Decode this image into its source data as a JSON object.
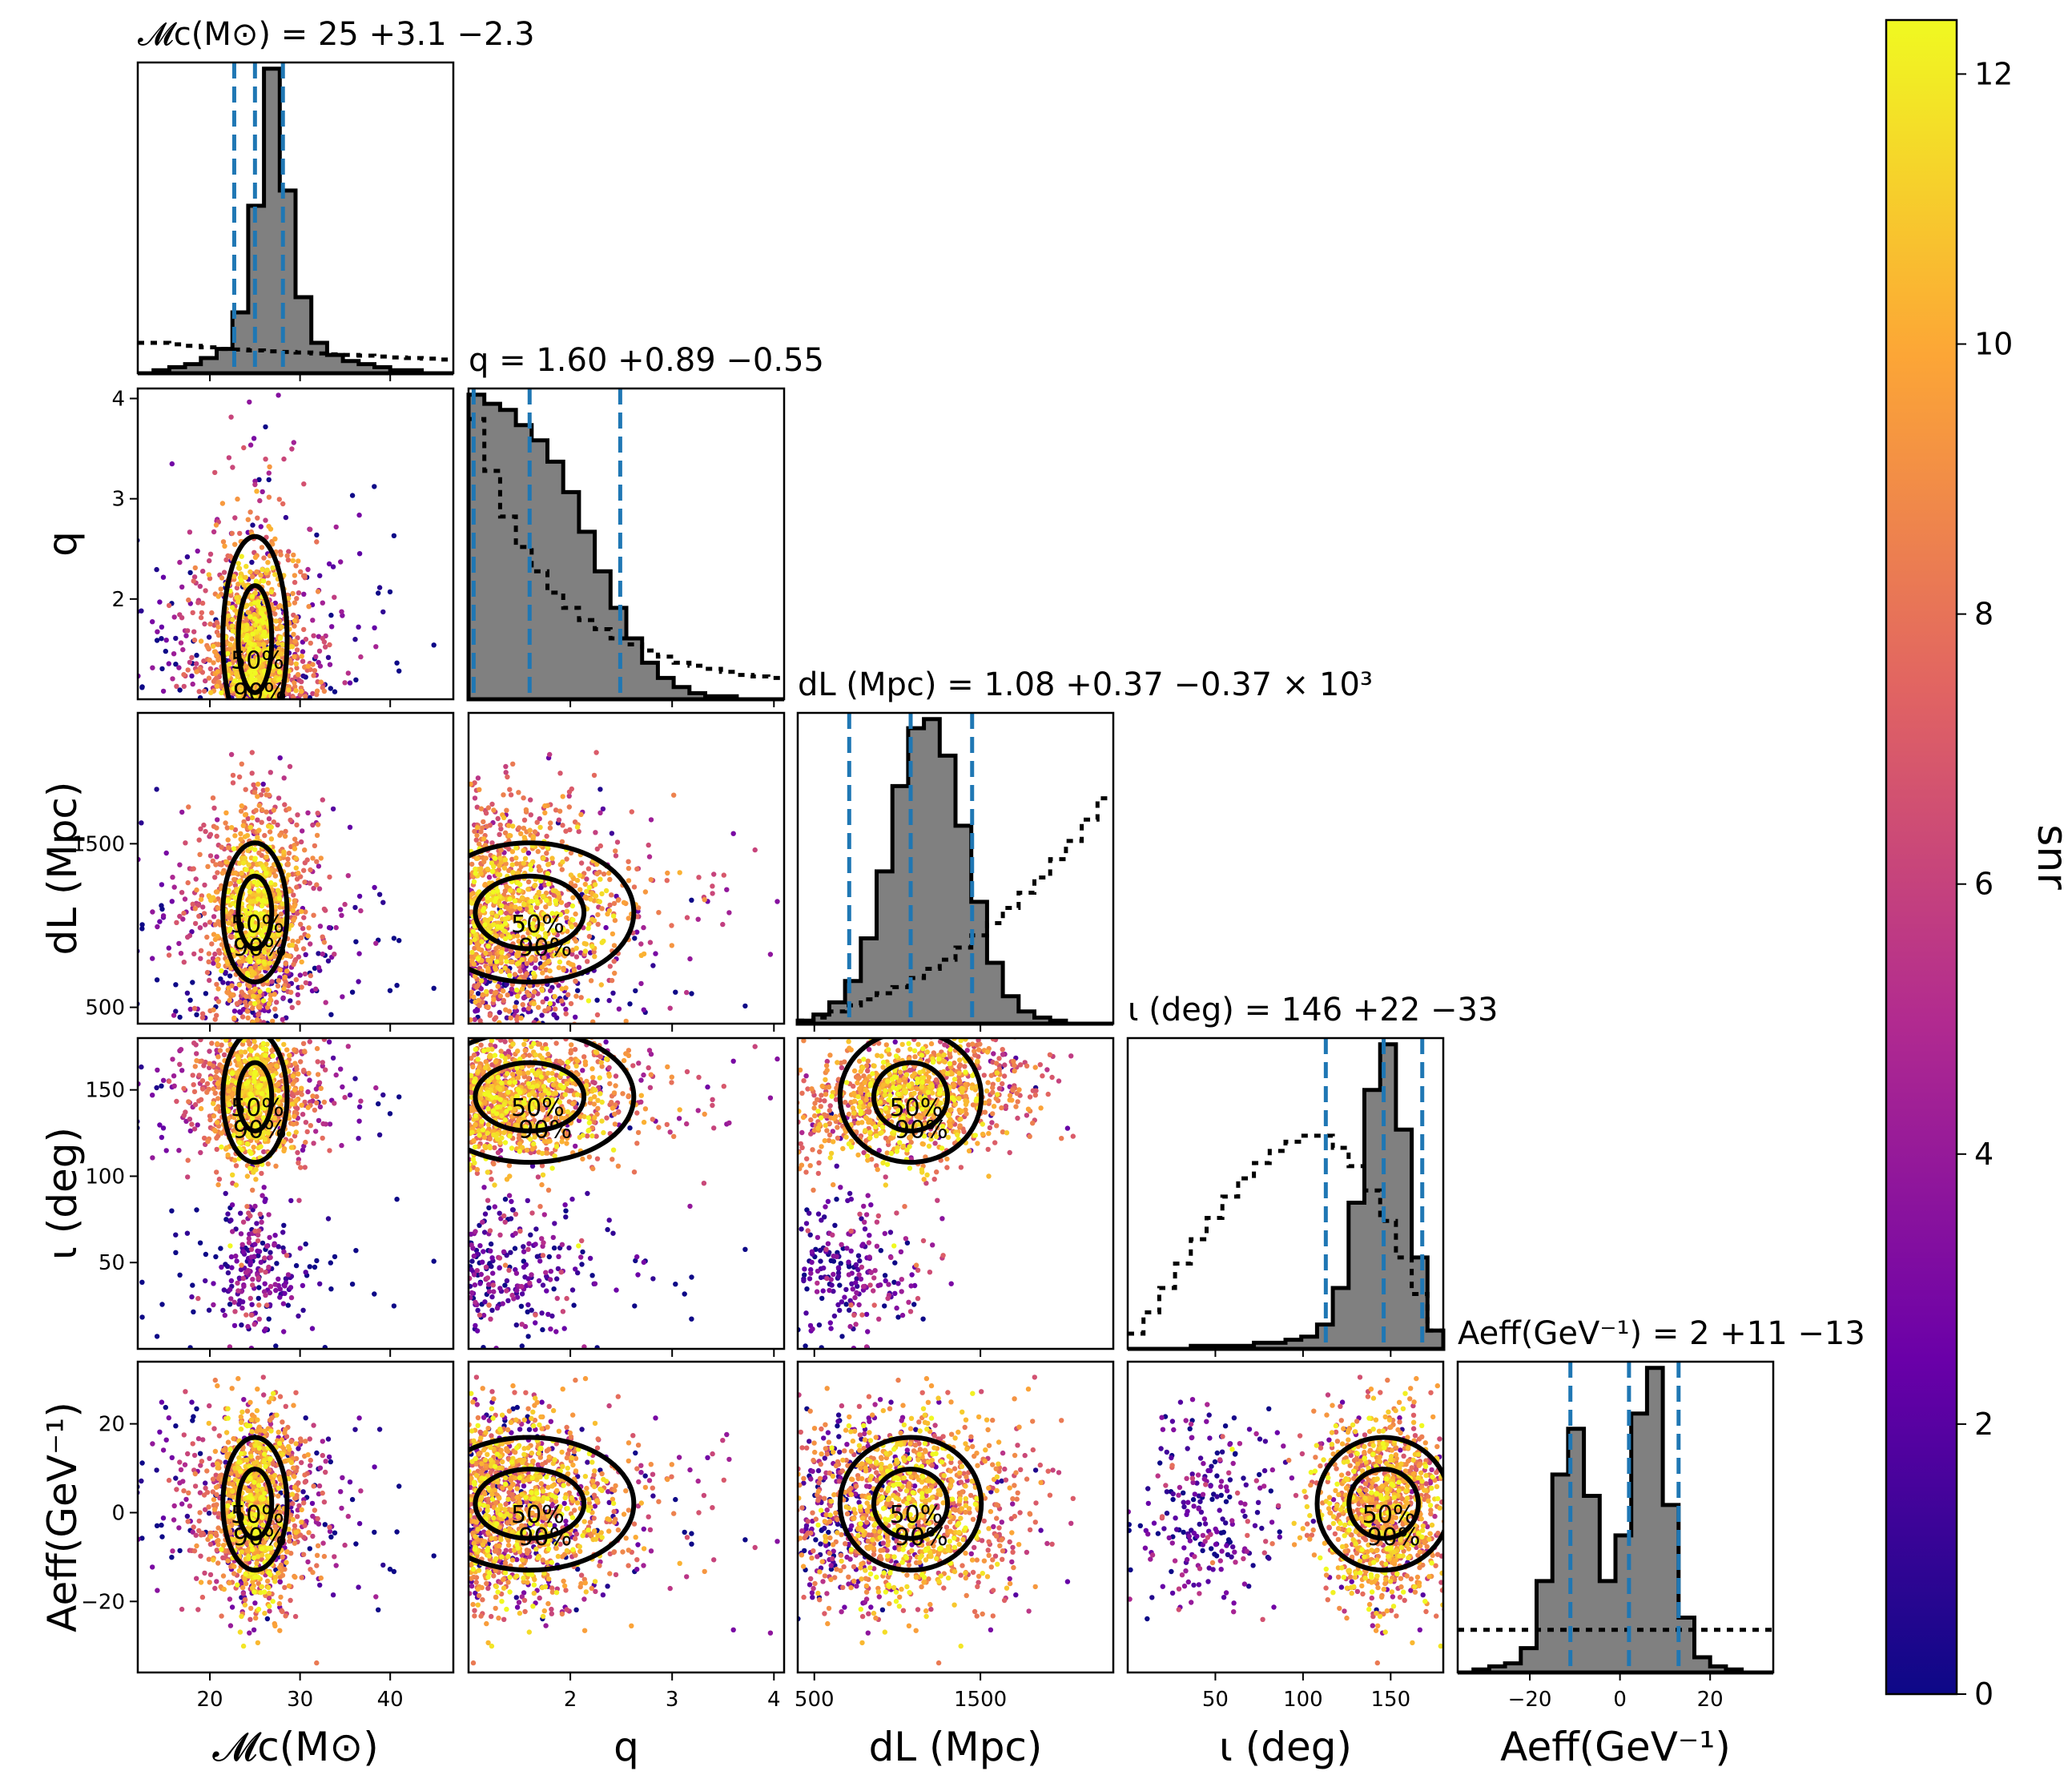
{
  "chart_data": {
    "type": "scatter",
    "colorbar": {
      "label": "snr",
      "range": [
        0,
        12.4
      ],
      "ticks": [
        "0",
        "2",
        "4",
        "6",
        "8",
        "10",
        "12"
      ],
      "colormap": "plasma",
      "colors": [
        "#0d0887",
        "#6a00a8",
        "#b12a90",
        "#e16462",
        "#fca636",
        "#f0f921"
      ]
    },
    "parameters": [
      {
        "key": "mc",
        "label": "𝓜c(M⊙)",
        "title": "𝓜c(M⊙) = 25 +3.1 −2.3",
        "range": [
          12,
          47
        ],
        "ticks": [
          20,
          30,
          40
        ],
        "tick_labels": [
          "20",
          "30",
          "40"
        ],
        "median": 25,
        "lower": 22.7,
        "upper": 28.1,
        "posterior_hist": [
          0,
          0.01,
          0.02,
          0.03,
          0.05,
          0.08,
          0.2,
          0.55,
          1.0,
          0.6,
          0.25,
          0.1,
          0.06,
          0.04,
          0.03,
          0.02,
          0.01,
          0.01,
          0,
          0
        ],
        "prior_hist": [
          0.1,
          0.1,
          0.095,
          0.09,
          0.085,
          0.08,
          0.078,
          0.075,
          0.072,
          0.07,
          0.068,
          0.065,
          0.062,
          0.06,
          0.058,
          0.055,
          0.052,
          0.05,
          0.048,
          0.045
        ]
      },
      {
        "key": "q",
        "label": "q",
        "title": "q = 1.60 +0.89 −0.55",
        "range": [
          1,
          4.1
        ],
        "ticks": [
          2,
          3,
          4
        ],
        "tick_labels": [
          "2",
          "3",
          "4"
        ],
        "median": 1.6,
        "lower": 1.05,
        "upper": 2.49,
        "posterior_hist": [
          1.0,
          0.97,
          0.95,
          0.9,
          0.85,
          0.78,
          0.68,
          0.55,
          0.42,
          0.3,
          0.2,
          0.12,
          0.07,
          0.04,
          0.02,
          0.01,
          0.01,
          0,
          0,
          0
        ],
        "prior_hist": [
          0.92,
          0.75,
          0.6,
          0.5,
          0.42,
          0.35,
          0.3,
          0.26,
          0.23,
          0.2,
          0.18,
          0.16,
          0.14,
          0.12,
          0.11,
          0.1,
          0.09,
          0.08,
          0.075,
          0.07
        ]
      },
      {
        "key": "dl",
        "label": "dL (Mpc)",
        "title": "dL (Mpc) = 1.08 +0.37 −0.37 × 10³",
        "range": [
          400,
          2300
        ],
        "ticks": [
          500,
          1500
        ],
        "tick_labels": [
          "500",
          "1500"
        ],
        "median": 1080,
        "lower": 710,
        "upper": 1450,
        "posterior_hist": [
          0.01,
          0.03,
          0.07,
          0.14,
          0.28,
          0.5,
          0.78,
          0.97,
          1.0,
          0.88,
          0.65,
          0.4,
          0.2,
          0.09,
          0.04,
          0.02,
          0.01,
          0,
          0,
          0
        ],
        "prior_hist": [
          0.01,
          0.02,
          0.04,
          0.06,
          0.08,
          0.1,
          0.12,
          0.15,
          0.18,
          0.21,
          0.25,
          0.29,
          0.33,
          0.38,
          0.43,
          0.48,
          0.54,
          0.6,
          0.67,
          0.74
        ]
      },
      {
        "key": "iota",
        "label": "ι (deg)",
        "title": "ι (deg) = 146 +22 −33",
        "range": [
          0,
          180
        ],
        "ticks": [
          50,
          100,
          150
        ],
        "tick_labels": [
          "50",
          "100",
          "150"
        ],
        "median": 146,
        "lower": 113,
        "upper": 168,
        "posterior_hist": [
          0,
          0,
          0,
          0,
          0.01,
          0.01,
          0.01,
          0.01,
          0.02,
          0.02,
          0.03,
          0.04,
          0.08,
          0.2,
          0.48,
          0.85,
          1.0,
          0.72,
          0.3,
          0.06
        ],
        "prior_hist": [
          0.05,
          0.12,
          0.2,
          0.28,
          0.36,
          0.43,
          0.5,
          0.56,
          0.61,
          0.65,
          0.68,
          0.7,
          0.7,
          0.66,
          0.6,
          0.52,
          0.42,
          0.3,
          0.18,
          0.06
        ]
      },
      {
        "key": "aeff",
        "label": "Aeff(GeV⁻¹)",
        "title": "Aeff(GeV⁻¹) = 2 +11 −13",
        "range": [
          -36,
          34
        ],
        "ticks": [
          -20,
          0,
          20
        ],
        "tick_labels": [
          "−20",
          "0",
          "20"
        ],
        "median": 2,
        "lower": -11,
        "upper": 13,
        "posterior_hist": [
          0,
          0.01,
          0.02,
          0.03,
          0.08,
          0.3,
          0.65,
          0.8,
          0.58,
          0.3,
          0.45,
          0.85,
          1.0,
          0.55,
          0.18,
          0.05,
          0.02,
          0.01,
          0,
          0
        ],
        "prior_hist": [
          0.14,
          0.14,
          0.14,
          0.14,
          0.14,
          0.14,
          0.14,
          0.14,
          0.14,
          0.14,
          0.14,
          0.14,
          0.14,
          0.14,
          0.14,
          0.14,
          0.14,
          0.14,
          0.14,
          0.14
        ]
      }
    ],
    "contour_levels": [
      "50%",
      "90%"
    ]
  }
}
